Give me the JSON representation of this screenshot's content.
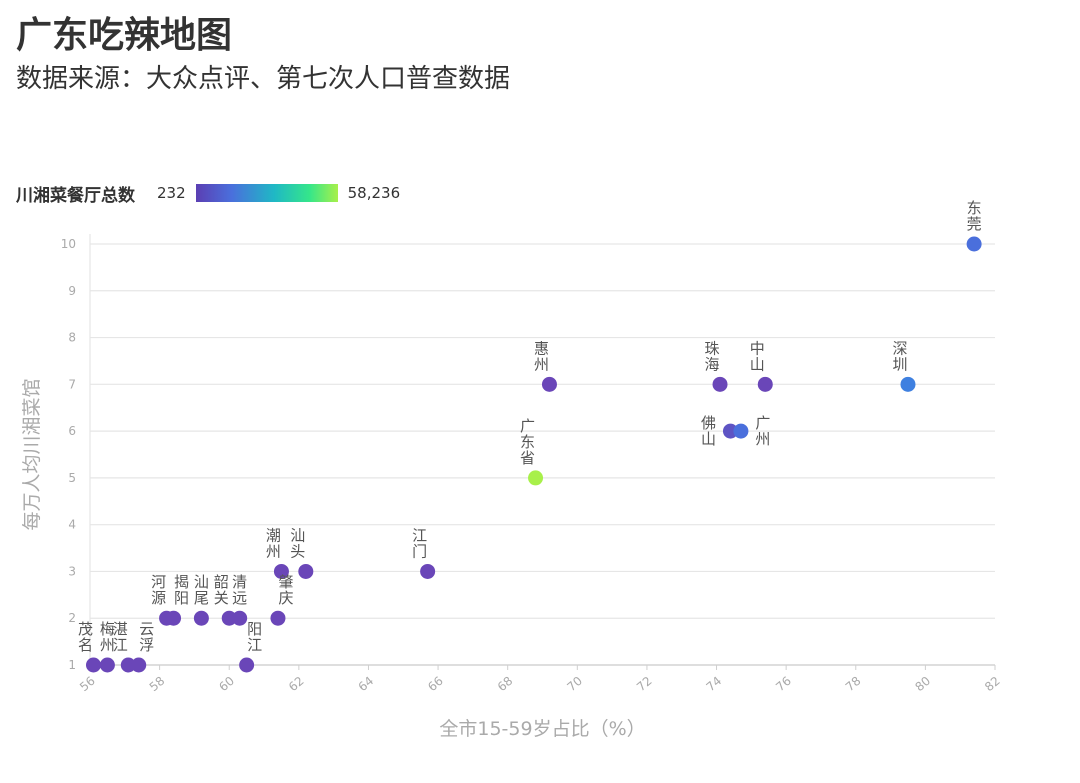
{
  "title": "广东吃辣地图",
  "subtitle": "数据来源：大众点评、第七次人口普查数据",
  "legend": {
    "title": "川湘菜餐厅总数",
    "min_label": "232",
    "max_label": "58,236",
    "colors": [
      "#5b3fb3",
      "#4a6fdc",
      "#1fb8c5",
      "#35e68a",
      "#a8f04a"
    ]
  },
  "chart_data": {
    "type": "scatter",
    "xlabel": "全市15-59岁占比（%）",
    "ylabel": "每万人均川湘菜馆",
    "xlim": [
      56,
      82
    ],
    "ylim": [
      1,
      10
    ],
    "x_ticks": [
      "56",
      "58",
      "60",
      "62",
      "64",
      "66",
      "68",
      "70",
      "72",
      "74",
      "76",
      "78",
      "80",
      "82"
    ],
    "y_ticks": [
      "1",
      "2",
      "3",
      "4",
      "5",
      "6",
      "7",
      "8",
      "9",
      "10"
    ],
    "grid": true,
    "points": [
      {
        "label": "东莞",
        "x": 81.4,
        "y": 10,
        "color": "#4a6fdc",
        "label_pos": "above"
      },
      {
        "label": "深圳",
        "x": 79.5,
        "y": 7,
        "color": "#3f80e0",
        "label_pos": "above-left"
      },
      {
        "label": "惠州",
        "x": 69.2,
        "y": 7,
        "color": "#6a46b8",
        "label_pos": "above-left"
      },
      {
        "label": "珠海",
        "x": 74.1,
        "y": 7,
        "color": "#6a46b8",
        "label_pos": "above-left"
      },
      {
        "label": "中山",
        "x": 75.4,
        "y": 7,
        "color": "#6a46b8",
        "label_pos": "above-left"
      },
      {
        "label": "佛山",
        "x": 74.4,
        "y": 6,
        "color": "#5e54c4",
        "label_pos": "left"
      },
      {
        "label": "广州",
        "x": 74.7,
        "y": 6,
        "color": "#4a6fdc",
        "label_pos": "right"
      },
      {
        "label": "广东省",
        "x": 68.8,
        "y": 5,
        "color": "#a8f04a",
        "label_pos": "above-left"
      },
      {
        "label": "江门",
        "x": 65.7,
        "y": 3,
        "color": "#6a46b8",
        "label_pos": "above-left"
      },
      {
        "label": "潮州",
        "x": 61.5,
        "y": 3,
        "color": "#6a46b8",
        "label_pos": "above-left"
      },
      {
        "label": "汕头",
        "x": 62.2,
        "y": 3,
        "color": "#6a46b8",
        "label_pos": "above-left"
      },
      {
        "label": "肇庆",
        "x": 61.4,
        "y": 2,
        "color": "#6a46b8",
        "label_pos": "above-right"
      },
      {
        "label": "河源",
        "x": 58.2,
        "y": 2,
        "color": "#6a46b8",
        "label_pos": "above-left"
      },
      {
        "label": "揭阳",
        "x": 58.4,
        "y": 2,
        "color": "#6a46b8",
        "label_pos": "above-right"
      },
      {
        "label": "汕尾",
        "x": 59.2,
        "y": 2,
        "color": "#6a46b8",
        "label_pos": "above"
      },
      {
        "label": "韶关",
        "x": 60.0,
        "y": 2,
        "color": "#6a46b8",
        "label_pos": "above-left"
      },
      {
        "label": "清远",
        "x": 60.3,
        "y": 2,
        "color": "#6a46b8",
        "label_pos": "above"
      },
      {
        "label": "阳江",
        "x": 60.5,
        "y": 1,
        "color": "#6a46b8",
        "label_pos": "above-right"
      },
      {
        "label": "茂名",
        "x": 56.1,
        "y": 1,
        "color": "#6a46b8",
        "label_pos": "above-left"
      },
      {
        "label": "梅州",
        "x": 56.5,
        "y": 1,
        "color": "#6a46b8",
        "label_pos": "above"
      },
      {
        "label": "湛江",
        "x": 57.1,
        "y": 1,
        "color": "#6a46b8",
        "label_pos": "above-left"
      },
      {
        "label": "云浮",
        "x": 57.4,
        "y": 1,
        "color": "#6a46b8",
        "label_pos": "above-right"
      }
    ]
  }
}
